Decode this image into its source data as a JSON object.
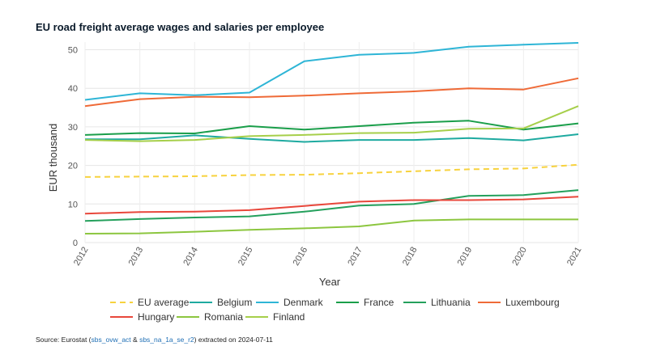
{
  "title": "EU road freight average wages and salaries per employee",
  "source": {
    "prefix": "Source: Eurostat (",
    "link1": "sbs_ovw_act",
    "amp": " & ",
    "link2": "sbs_na_1a_se_r2",
    "suffix": ") extracted on 2024-07-11"
  },
  "chart_data": {
    "type": "line",
    "title": "EU road freight average wages and salaries per employee",
    "xlabel": "Year",
    "ylabel": "EUR thousand",
    "ylim": [
      0,
      52
    ],
    "yticks": [
      0,
      10,
      20,
      30,
      40,
      50
    ],
    "x": [
      "2012",
      "2013",
      "2014",
      "2015",
      "2016",
      "2017",
      "2018",
      "2019",
      "2020",
      "2021"
    ],
    "grid": true,
    "legend_position": "bottom",
    "series": [
      {
        "name": "EU average",
        "color": "#f7d23e",
        "dashed": true,
        "values": [
          17.0,
          17.1,
          17.2,
          17.5,
          17.6,
          18.0,
          18.5,
          19.0,
          19.2,
          20.2
        ]
      },
      {
        "name": "Belgium",
        "color": "#1eaaa0",
        "dashed": false,
        "values": [
          26.8,
          26.8,
          27.8,
          26.9,
          26.1,
          26.6,
          26.6,
          27.1,
          26.5,
          28.1
        ]
      },
      {
        "name": "Denmark",
        "color": "#2eb5d6",
        "dashed": false,
        "values": [
          37.0,
          38.7,
          38.2,
          38.9,
          47.0,
          48.7,
          49.2,
          50.8,
          51.3,
          51.8
        ]
      },
      {
        "name": "France",
        "color": "#1a9e4a",
        "dashed": false,
        "values": [
          27.9,
          28.4,
          28.3,
          30.2,
          29.3,
          30.2,
          31.1,
          31.6,
          29.3,
          30.9
        ]
      },
      {
        "name": "Lithuania",
        "color": "#24a05c",
        "dashed": false,
        "values": [
          5.6,
          6.1,
          6.5,
          6.8,
          8.0,
          9.6,
          10.0,
          12.1,
          12.3,
          13.6
        ]
      },
      {
        "name": "Luxembourg",
        "color": "#ef6a37",
        "dashed": false,
        "values": [
          35.4,
          37.2,
          37.8,
          37.7,
          38.1,
          38.7,
          39.2,
          40.0,
          39.7,
          42.6
        ]
      },
      {
        "name": "Hungary",
        "color": "#e8473b",
        "dashed": false,
        "values": [
          7.5,
          7.9,
          8.0,
          8.4,
          9.5,
          10.6,
          11.0,
          11.0,
          11.2,
          11.9
        ]
      },
      {
        "name": "Romania",
        "color": "#8cc63f",
        "dashed": false,
        "values": [
          2.3,
          2.4,
          2.8,
          3.3,
          3.7,
          4.2,
          5.7,
          6.0,
          6.0,
          6.0
        ]
      },
      {
        "name": "Finland",
        "color": "#a6cf4a",
        "dashed": false,
        "values": [
          26.6,
          26.3,
          26.6,
          27.6,
          27.9,
          28.4,
          28.5,
          29.5,
          29.6,
          35.4
        ]
      }
    ]
  }
}
